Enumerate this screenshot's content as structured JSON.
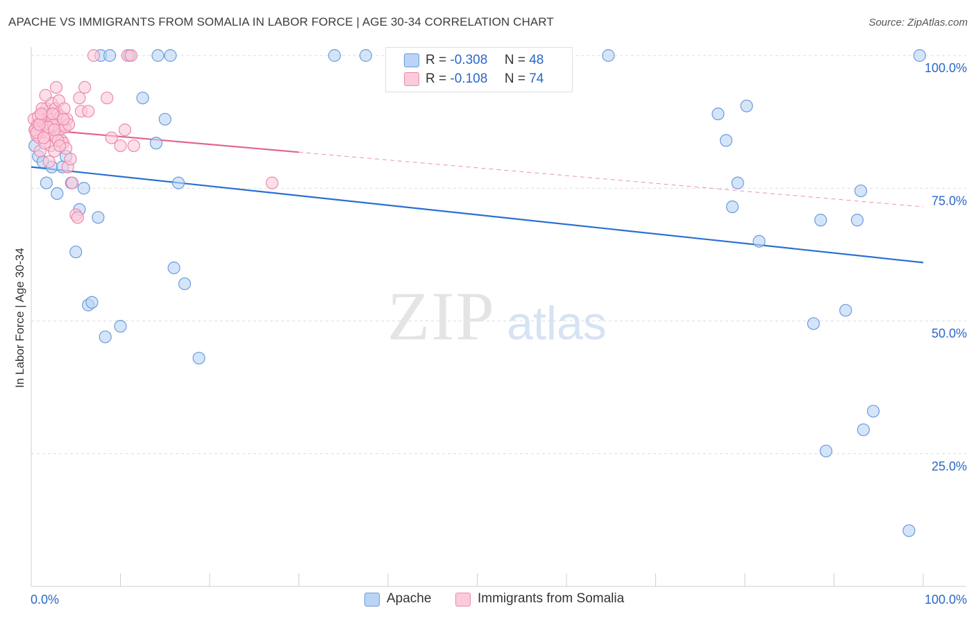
{
  "title": "APACHE VS IMMIGRANTS FROM SOMALIA IN LABOR FORCE | AGE 30-34 CORRELATION CHART",
  "source": "Source: ZipAtlas.com",
  "watermark": {
    "zip": "ZIP",
    "atlas": "atlas"
  },
  "legend": {
    "apache": {
      "r_label": "R =",
      "r_value": "-0.308",
      "n_label": "N =",
      "n_value": "48"
    },
    "somalia": {
      "r_label": "R =",
      "r_value": "-0.108",
      "n_label": "N =",
      "n_value": "74"
    }
  },
  "bottom_legend": {
    "apache": "Apache",
    "somalia": "Immigrants from Somalia"
  },
  "colors": {
    "apache_fill": "#b9d4f5",
    "apache_stroke": "#6a9bd9",
    "apache_line": "#2a6fd1",
    "somalia_fill": "#fbcadb",
    "somalia_stroke": "#e98aab",
    "somalia_line": "#e2648f",
    "grid": "#dcdcdc",
    "tick_label": "#2a67c9"
  },
  "chart_data": {
    "type": "scatter",
    "title": "APACHE VS IMMIGRANTS FROM SOMALIA IN LABOR FORCE | AGE 30-34 CORRELATION CHART",
    "xlabel": "",
    "ylabel": "In Labor Force | Age 30-34",
    "xlim": [
      0,
      100
    ],
    "ylim": [
      0,
      100
    ],
    "x_tick_labels": [
      "0.0%",
      "100.0%"
    ],
    "y_ticks": [
      25,
      50,
      75,
      100
    ],
    "y_tick_labels": [
      "25.0%",
      "50.0%",
      "75.0%",
      "100.0%"
    ],
    "grid": true,
    "series": [
      {
        "name": "Apache",
        "r": -0.308,
        "n": 48,
        "trend": {
          "x0": 0,
          "y0": 79,
          "x1": 100,
          "y1": 61,
          "solid_until": 100
        },
        "points": [
          [
            0.4,
            83
          ],
          [
            0.8,
            81
          ],
          [
            1.3,
            80
          ],
          [
            1.7,
            76
          ],
          [
            2.3,
            79
          ],
          [
            2.9,
            74
          ],
          [
            3.5,
            79
          ],
          [
            3.9,
            81
          ],
          [
            4.5,
            76
          ],
          [
            5.4,
            71
          ],
          [
            5.9,
            75
          ],
          [
            7.5,
            69.5
          ],
          [
            5.0,
            63
          ],
          [
            6.4,
            53
          ],
          [
            6.8,
            53.5
          ],
          [
            8.3,
            47
          ],
          [
            10.0,
            49
          ],
          [
            12.5,
            92
          ],
          [
            14.0,
            83.5
          ],
          [
            15.0,
            88
          ],
          [
            16.0,
            60
          ],
          [
            16.5,
            76
          ],
          [
            17.2,
            57
          ],
          [
            18.8,
            43
          ],
          [
            7.8,
            100
          ],
          [
            8.8,
            100
          ],
          [
            11.0,
            100
          ],
          [
            14.2,
            100
          ],
          [
            15.6,
            100
          ],
          [
            34.0,
            100
          ],
          [
            37.5,
            100
          ],
          [
            64.7,
            100
          ],
          [
            99.6,
            100
          ],
          [
            77.0,
            89
          ],
          [
            80.2,
            90.5
          ],
          [
            77.9,
            84
          ],
          [
            79.2,
            76
          ],
          [
            78.6,
            71.5
          ],
          [
            81.6,
            65
          ],
          [
            88.5,
            69
          ],
          [
            92.6,
            69
          ],
          [
            93.0,
            74.5
          ],
          [
            87.7,
            49.5
          ],
          [
            91.3,
            52
          ],
          [
            94.4,
            33
          ],
          [
            93.3,
            29.5
          ],
          [
            89.1,
            25.5
          ],
          [
            98.4,
            10.5
          ]
        ]
      },
      {
        "name": "Immigrants from Somalia",
        "r": -0.108,
        "n": 74,
        "trend": {
          "x0": 0,
          "y0": 86.2,
          "x1": 100,
          "y1": 71.5,
          "solid_until": 30
        },
        "points": [
          [
            0.3,
            88
          ],
          [
            0.5,
            86
          ],
          [
            0.6,
            85
          ],
          [
            0.7,
            87
          ],
          [
            0.8,
            86.5
          ],
          [
            0.9,
            84.5
          ],
          [
            1.0,
            87.5
          ],
          [
            1.1,
            86
          ],
          [
            1.2,
            85.5
          ],
          [
            1.3,
            89
          ],
          [
            1.4,
            87
          ],
          [
            1.5,
            86
          ],
          [
            1.7,
            90
          ],
          [
            1.8,
            88
          ],
          [
            1.9,
            85
          ],
          [
            2.0,
            89.5
          ],
          [
            2.1,
            87
          ],
          [
            2.2,
            83
          ],
          [
            2.3,
            91
          ],
          [
            2.4,
            88
          ],
          [
            2.5,
            86.5
          ],
          [
            2.6,
            82
          ],
          [
            2.7,
            90
          ],
          [
            2.8,
            84.5
          ],
          [
            2.9,
            87.5
          ],
          [
            3.0,
            89
          ],
          [
            3.1,
            91.5
          ],
          [
            3.2,
            86
          ],
          [
            3.3,
            88.5
          ],
          [
            3.4,
            84
          ],
          [
            3.5,
            87
          ],
          [
            3.6,
            83.5
          ],
          [
            3.7,
            90
          ],
          [
            3.8,
            86.5
          ],
          [
            3.9,
            82.5
          ],
          [
            4.0,
            88
          ],
          [
            4.1,
            79
          ],
          [
            4.2,
            87
          ],
          [
            4.4,
            80.5
          ],
          [
            1.0,
            82
          ],
          [
            1.5,
            83.5
          ],
          [
            2.0,
            80
          ],
          [
            2.8,
            94
          ],
          [
            4.6,
            76
          ],
          [
            5.0,
            70
          ],
          [
            5.2,
            69.5
          ],
          [
            5.4,
            92
          ],
          [
            5.6,
            89.5
          ],
          [
            6.0,
            94
          ],
          [
            6.4,
            89.5
          ],
          [
            7.0,
            100
          ],
          [
            8.5,
            92
          ],
          [
            9.0,
            84.5
          ],
          [
            10.0,
            83
          ],
          [
            10.5,
            86
          ],
          [
            10.8,
            100
          ],
          [
            11.2,
            100
          ],
          [
            11.5,
            83
          ],
          [
            27.0,
            76
          ],
          [
            1.6,
            92.5
          ],
          [
            0.8,
            88.5
          ],
          [
            1.2,
            90
          ],
          [
            2.5,
            87
          ],
          [
            3.0,
            84
          ],
          [
            3.6,
            88
          ],
          [
            1.9,
            86.5
          ],
          [
            2.4,
            89
          ],
          [
            0.4,
            86
          ],
          [
            0.6,
            85.5
          ],
          [
            0.9,
            87
          ],
          [
            1.1,
            89
          ],
          [
            1.4,
            84.5
          ],
          [
            2.6,
            86
          ],
          [
            3.2,
            83
          ]
        ]
      }
    ]
  }
}
